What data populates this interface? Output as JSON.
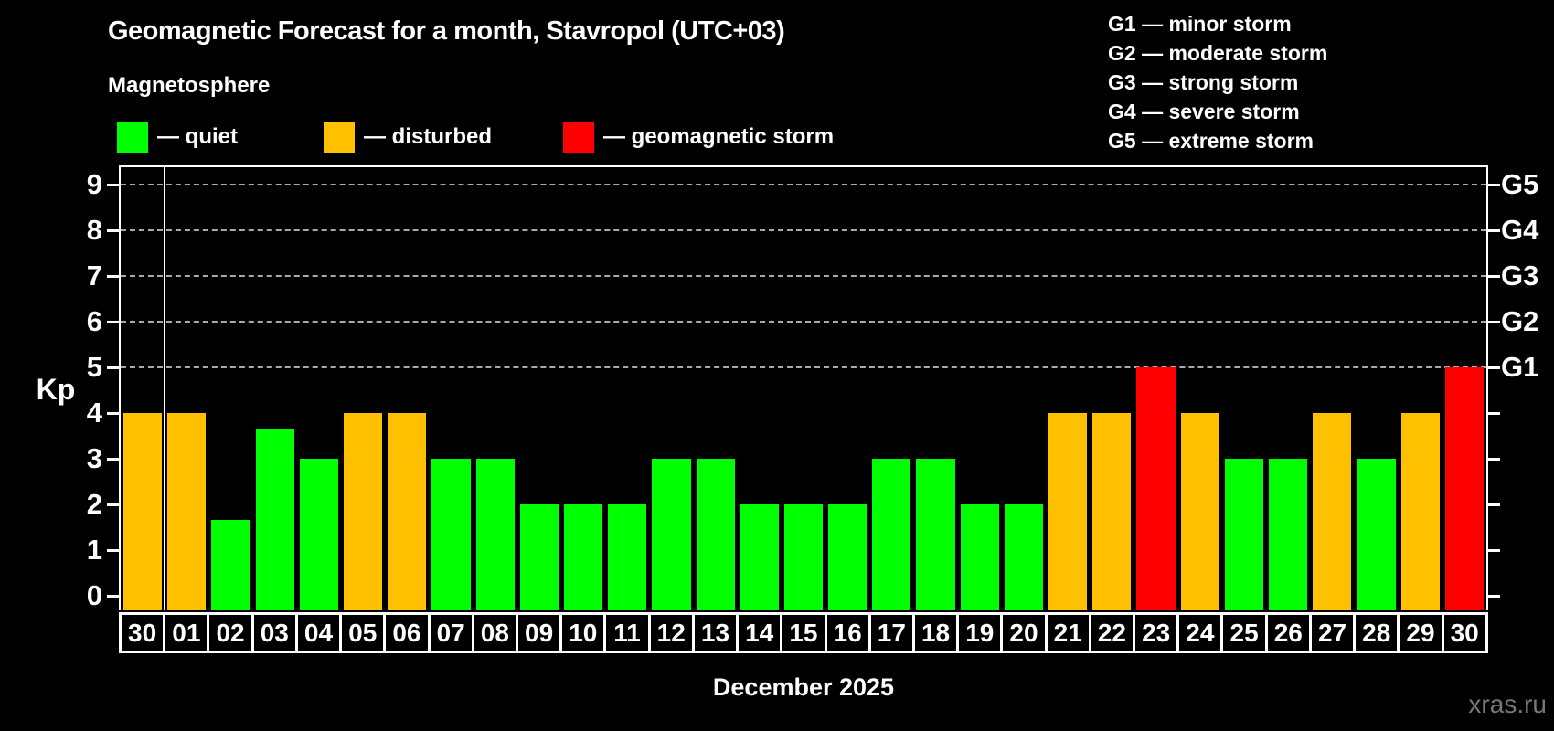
{
  "title": "Geomagnetic Forecast for a month, Stavropol (UTC+03)",
  "legend": {
    "title": "Magnetosphere",
    "items": [
      {
        "id": "quiet",
        "label": "— quiet",
        "color": "#00ff00"
      },
      {
        "id": "disturbed",
        "label": "— disturbed",
        "color": "#ffc000"
      },
      {
        "id": "storm",
        "label": "— geomagnetic storm",
        "color": "#ff0000"
      }
    ]
  },
  "g_legend": [
    "G1 — minor storm",
    "G2 — moderate storm",
    "G3 — strong storm",
    "G4 — severe storm",
    "G5 — extreme storm"
  ],
  "axis": {
    "y_label": "Kp",
    "y_ticks": [
      0,
      1,
      2,
      3,
      4,
      5,
      6,
      7,
      8,
      9
    ],
    "right_labels": [
      "G1",
      "G2",
      "G3",
      "G4",
      "G5"
    ],
    "right_label_kp": [
      5,
      6,
      7,
      8,
      9
    ]
  },
  "watermark": "xras.ru",
  "chart_data": {
    "type": "bar",
    "title": "Geomagnetic Forecast for a month, Stavropol (UTC+03)",
    "xlabel": "December 2025",
    "ylabel": "Kp",
    "ylim": [
      0,
      9
    ],
    "grid_levels_kp": [
      5,
      6,
      7,
      8,
      9
    ],
    "legend_position": "top-left",
    "prev_month_day_count": 1,
    "categories": [
      "30",
      "01",
      "02",
      "03",
      "04",
      "05",
      "06",
      "07",
      "08",
      "09",
      "10",
      "11",
      "12",
      "13",
      "14",
      "15",
      "16",
      "17",
      "18",
      "19",
      "20",
      "21",
      "22",
      "23",
      "24",
      "25",
      "26",
      "27",
      "28",
      "29",
      "30"
    ],
    "values": [
      4,
      4,
      1.67,
      3.67,
      3,
      4,
      4,
      3,
      3,
      2,
      2,
      2,
      3,
      3,
      2,
      2,
      2,
      3,
      3,
      2,
      2,
      4,
      4,
      5,
      4,
      3,
      3,
      4,
      3,
      4,
      5
    ],
    "states": [
      "disturbed",
      "disturbed",
      "quiet",
      "quiet",
      "quiet",
      "disturbed",
      "disturbed",
      "quiet",
      "quiet",
      "quiet",
      "quiet",
      "quiet",
      "quiet",
      "quiet",
      "quiet",
      "quiet",
      "quiet",
      "quiet",
      "quiet",
      "quiet",
      "quiet",
      "disturbed",
      "disturbed",
      "storm",
      "disturbed",
      "quiet",
      "quiet",
      "disturbed",
      "quiet",
      "disturbed",
      "storm"
    ]
  }
}
